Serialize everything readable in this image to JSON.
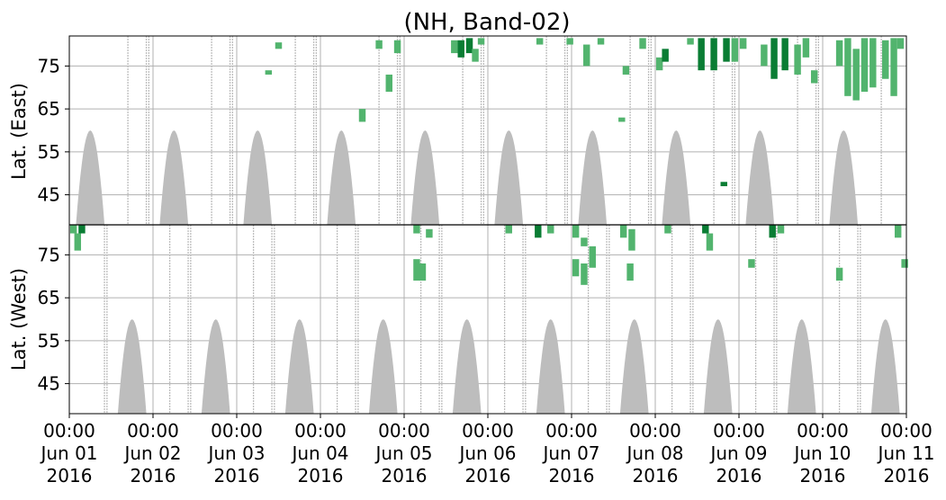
{
  "chart_data": {
    "type": "heatmap",
    "title": "(NH, Band-02)",
    "x_axis": {
      "range": [
        "2016-06-01 00:00",
        "2016-06-11 00:00"
      ],
      "tick_labels": [
        [
          "00:00",
          "Jun 01",
          "2016"
        ],
        [
          "00:00",
          "Jun 02",
          "2016"
        ],
        [
          "00:00",
          "Jun 03",
          "2016"
        ],
        [
          "00:00",
          "Jun 04",
          "2016"
        ],
        [
          "00:00",
          "Jun 05",
          "2016"
        ],
        [
          "00:00",
          "Jun 06",
          "2016"
        ],
        [
          "00:00",
          "Jun 07",
          "2016"
        ],
        [
          "00:00",
          "Jun 08",
          "2016"
        ],
        [
          "00:00",
          "Jun 09",
          "2016"
        ],
        [
          "00:00",
          "Jun 10",
          "2016"
        ],
        [
          "00:00",
          "Jun 11",
          "2016"
        ]
      ]
    },
    "panels": [
      {
        "name": "east",
        "ylabel": "Lat. (East)",
        "ylim": [
          38,
          82
        ],
        "yticks": [
          45,
          55,
          65,
          75
        ],
        "inverted": false
      },
      {
        "name": "west",
        "ylabel": "Lat. (West)",
        "ylim": [
          38,
          82
        ],
        "yticks": [
          45,
          55,
          65,
          75
        ],
        "inverted": true
      }
    ],
    "grid": true,
    "colors": {
      "no_data": "#bdbdbd",
      "detection_dark": "#0a7d34",
      "detection_light": "#52b46e",
      "grid": "#b0b0b0",
      "frame": "#000000"
    },
    "no_data_lobes": {
      "east": {
        "center_days": [
          0.25,
          1.25,
          2.25,
          3.25,
          4.25,
          5.25,
          6.25,
          7.25,
          8.25,
          9.25
        ],
        "half_width_days": 0.17,
        "min_lat": 60
      },
      "west": {
        "center_days": [
          0.75,
          1.75,
          2.75,
          3.75,
          4.75,
          5.75,
          6.75,
          7.75,
          8.75,
          9.75
        ],
        "half_width_days": 0.17,
        "min_lat": 60
      }
    },
    "detections": {
      "east": [
        {
          "day": 2.38,
          "lat_min": 73,
          "lat_max": 74,
          "level": "light"
        },
        {
          "day": 2.5,
          "lat_min": 79,
          "lat_max": 80.5,
          "level": "light"
        },
        {
          "day": 3.5,
          "lat_min": 62,
          "lat_max": 65,
          "level": "light"
        },
        {
          "day": 3.82,
          "lat_min": 69,
          "lat_max": 73,
          "level": "light"
        },
        {
          "day": 3.7,
          "lat_min": 79,
          "lat_max": 81,
          "level": "light"
        },
        {
          "day": 3.92,
          "lat_min": 78,
          "lat_max": 81,
          "level": "light"
        },
        {
          "day": 4.6,
          "lat_min": 78,
          "lat_max": 81,
          "level": "light"
        },
        {
          "day": 4.68,
          "lat_min": 77,
          "lat_max": 81,
          "level": "dark"
        },
        {
          "day": 4.78,
          "lat_min": 78,
          "lat_max": 81.5,
          "level": "dark"
        },
        {
          "day": 4.85,
          "lat_min": 76,
          "lat_max": 79,
          "level": "light"
        },
        {
          "day": 4.92,
          "lat_min": 80,
          "lat_max": 81.5,
          "level": "light"
        },
        {
          "day": 5.62,
          "lat_min": 80,
          "lat_max": 81.5,
          "level": "light"
        },
        {
          "day": 5.98,
          "lat_min": 80,
          "lat_max": 81.5,
          "level": "light"
        },
        {
          "day": 6.18,
          "lat_min": 75,
          "lat_max": 80,
          "level": "light"
        },
        {
          "day": 6.35,
          "lat_min": 80,
          "lat_max": 81.5,
          "level": "light"
        },
        {
          "day": 6.6,
          "lat_min": 62,
          "lat_max": 63,
          "level": "light"
        },
        {
          "day": 6.65,
          "lat_min": 73,
          "lat_max": 75,
          "level": "light"
        },
        {
          "day": 6.85,
          "lat_min": 79,
          "lat_max": 81.5,
          "level": "light"
        },
        {
          "day": 7.05,
          "lat_min": 74,
          "lat_max": 77,
          "level": "light"
        },
        {
          "day": 7.12,
          "lat_min": 76,
          "lat_max": 79,
          "level": "dark"
        },
        {
          "day": 7.42,
          "lat_min": 80,
          "lat_max": 81.5,
          "level": "light"
        },
        {
          "day": 7.55,
          "lat_min": 74,
          "lat_max": 81.5,
          "level": "dark"
        },
        {
          "day": 7.7,
          "lat_min": 74,
          "lat_max": 81.5,
          "level": "dark"
        },
        {
          "day": 7.85,
          "lat_min": 76,
          "lat_max": 81.5,
          "level": "dark"
        },
        {
          "day": 7.95,
          "lat_min": 76,
          "lat_max": 81.5,
          "level": "light"
        },
        {
          "day": 8.05,
          "lat_min": 79,
          "lat_max": 81.5,
          "level": "light"
        },
        {
          "day": 8.3,
          "lat_min": 75,
          "lat_max": 80,
          "level": "light"
        },
        {
          "day": 8.42,
          "lat_min": 72,
          "lat_max": 81.5,
          "level": "dark"
        },
        {
          "day": 8.55,
          "lat_min": 74,
          "lat_max": 81.5,
          "level": "dark"
        },
        {
          "day": 8.7,
          "lat_min": 73,
          "lat_max": 80,
          "level": "light"
        },
        {
          "day": 8.8,
          "lat_min": 77,
          "lat_max": 81.5,
          "level": "light"
        },
        {
          "day": 8.9,
          "lat_min": 71,
          "lat_max": 74,
          "level": "light"
        },
        {
          "day": 9.2,
          "lat_min": 75,
          "lat_max": 81,
          "level": "light"
        },
        {
          "day": 9.3,
          "lat_min": 68,
          "lat_max": 81.5,
          "level": "light"
        },
        {
          "day": 9.4,
          "lat_min": 67,
          "lat_max": 79,
          "level": "light"
        },
        {
          "day": 9.5,
          "lat_min": 69,
          "lat_max": 81.5,
          "level": "light"
        },
        {
          "day": 9.6,
          "lat_min": 70,
          "lat_max": 81.5,
          "level": "light"
        },
        {
          "day": 9.75,
          "lat_min": 72,
          "lat_max": 81,
          "level": "light"
        },
        {
          "day": 9.85,
          "lat_min": 68,
          "lat_max": 81.5,
          "level": "light"
        },
        {
          "day": 9.93,
          "lat_min": 79,
          "lat_max": 81.5,
          "level": "light"
        },
        {
          "day": 7.82,
          "lat_min": 47,
          "lat_max": 48,
          "level": "dark"
        }
      ],
      "west": [
        {
          "day": 0.05,
          "lat_min": 80,
          "lat_max": 82,
          "level": "light"
        },
        {
          "day": 0.1,
          "lat_min": 76,
          "lat_max": 80,
          "level": "light"
        },
        {
          "day": 0.15,
          "lat_min": 80,
          "lat_max": 82,
          "level": "dark"
        },
        {
          "day": 4.15,
          "lat_min": 80,
          "lat_max": 82,
          "level": "light"
        },
        {
          "day": 4.3,
          "lat_min": 79,
          "lat_max": 81,
          "level": "light"
        },
        {
          "day": 4.15,
          "lat_min": 69,
          "lat_max": 74,
          "level": "light"
        },
        {
          "day": 4.22,
          "lat_min": 69,
          "lat_max": 73,
          "level": "light"
        },
        {
          "day": 5.25,
          "lat_min": 80,
          "lat_max": 82,
          "level": "light"
        },
        {
          "day": 5.6,
          "lat_min": 79,
          "lat_max": 82,
          "level": "dark"
        },
        {
          "day": 5.75,
          "lat_min": 80,
          "lat_max": 82,
          "level": "light"
        },
        {
          "day": 6.05,
          "lat_min": 79,
          "lat_max": 82,
          "level": "light"
        },
        {
          "day": 6.15,
          "lat_min": 77,
          "lat_max": 79,
          "level": "light"
        },
        {
          "day": 6.25,
          "lat_min": 72,
          "lat_max": 77,
          "level": "light"
        },
        {
          "day": 6.05,
          "lat_min": 70,
          "lat_max": 74,
          "level": "light"
        },
        {
          "day": 6.15,
          "lat_min": 68,
          "lat_max": 73,
          "level": "light"
        },
        {
          "day": 6.62,
          "lat_min": 79,
          "lat_max": 82,
          "level": "light"
        },
        {
          "day": 6.72,
          "lat_min": 76,
          "lat_max": 81,
          "level": "light"
        },
        {
          "day": 6.7,
          "lat_min": 69,
          "lat_max": 73,
          "level": "light"
        },
        {
          "day": 7.15,
          "lat_min": 80,
          "lat_max": 82,
          "level": "light"
        },
        {
          "day": 7.6,
          "lat_min": 80,
          "lat_max": 82,
          "level": "dark"
        },
        {
          "day": 7.65,
          "lat_min": 76,
          "lat_max": 80,
          "level": "light"
        },
        {
          "day": 8.15,
          "lat_min": 72,
          "lat_max": 74,
          "level": "light"
        },
        {
          "day": 8.4,
          "lat_min": 79,
          "lat_max": 82,
          "level": "dark"
        },
        {
          "day": 8.5,
          "lat_min": 80,
          "lat_max": 82,
          "level": "light"
        },
        {
          "day": 9.2,
          "lat_min": 69,
          "lat_max": 72,
          "level": "light"
        },
        {
          "day": 9.9,
          "lat_min": 79,
          "lat_max": 82,
          "level": "light"
        },
        {
          "day": 9.98,
          "lat_min": 72,
          "lat_max": 74,
          "level": "light"
        }
      ]
    },
    "annotations": []
  }
}
